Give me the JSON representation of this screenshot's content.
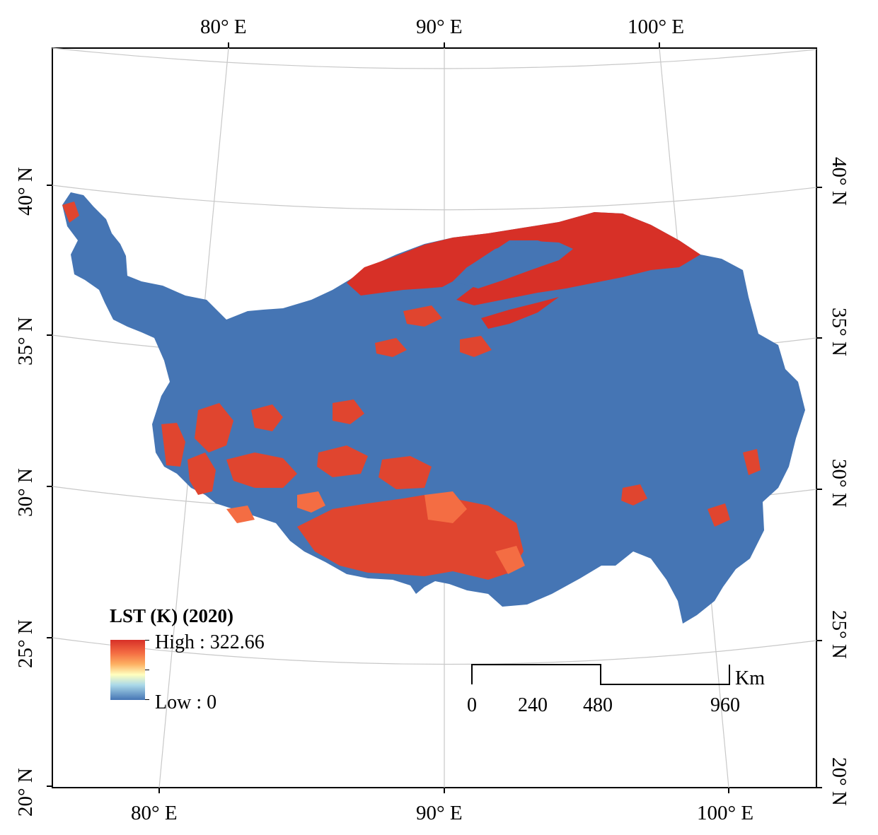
{
  "map": {
    "legend": {
      "title": "LST (K) (2020)",
      "high_label": "High : 322.66",
      "low_label": "Low : 0",
      "high_value": 322.66,
      "low_value": 0,
      "colors": [
        "#d73027",
        "#f46d43",
        "#fdae61",
        "#ffffbf",
        "#abd9e9",
        "#4575b4"
      ]
    },
    "top_lon_labels": [
      "80° E",
      "90° E",
      "100° E"
    ],
    "bottom_lon_labels": [
      "80° E",
      "90° E",
      "100° E"
    ],
    "left_lat_labels": [
      "40° N",
      "35° N",
      "30° N",
      "25° N",
      "20° N"
    ],
    "right_lat_labels": [
      "40° N",
      "35° N",
      "30° N",
      "25° N",
      "20° N"
    ],
    "scale_bar": {
      "unit": "Km",
      "ticks": [
        "0",
        "240",
        "480",
        "960"
      ]
    },
    "colors": {
      "low_region": "#4575b4",
      "high_region": "#d73027",
      "graticule": "#c8c8c8"
    }
  }
}
